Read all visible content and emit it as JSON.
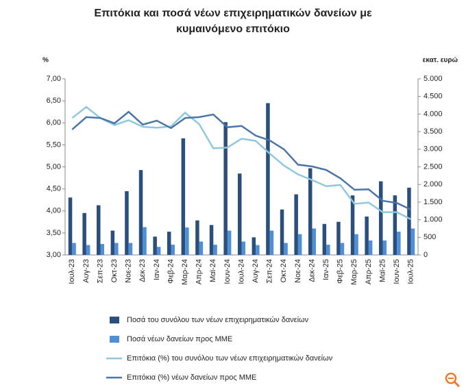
{
  "chart_data": {
    "type": "combo",
    "title": "Επιτόκια και ποσά νέων επιχειρηματικών δανείων με κυμαινόμενο επιτόκιο",
    "y_label": "%",
    "y2_label": "εκατ. ευρώ",
    "categories": [
      "Ιουλ-23",
      "Αυγ-23",
      "Σεπ-23",
      "Οκτ-23",
      "Νοε-23",
      "Δεκ-23",
      "Ιαν-24",
      "Φεβ-24",
      "Μαρ-24",
      "Απρ-24",
      "Μαϊ-24",
      "Ιουν-24",
      "Ιουλ-24",
      "Αυγ-24",
      "Σεπ-24",
      "Οκτ-24",
      "Νοε-24",
      "Δεκ-24",
      "Ιαν-25",
      "Φεβ-25",
      "Μαρ-25",
      "Απρ-25",
      "Μαϊ-25",
      "Ιουν-25",
      "Ιουλ-25"
    ],
    "ylim": [
      3,
      7
    ],
    "yticks": [
      {
        "value": 3,
        "label": "3,00"
      },
      {
        "value": 3.5,
        "label": "3,50"
      },
      {
        "value": 4,
        "label": "4,00"
      },
      {
        "value": 4.5,
        "label": "4,50"
      },
      {
        "value": 5,
        "label": "5,00"
      },
      {
        "value": 5.5,
        "label": "5,50"
      },
      {
        "value": 6,
        "label": "6,00"
      },
      {
        "value": 6.5,
        "label": "6,50"
      },
      {
        "value": 7,
        "label": "7,00"
      }
    ],
    "y2lim": [
      0,
      5000
    ],
    "y2ticks": [
      0,
      500,
      {
        "value": 1000,
        "label": "1.000"
      },
      {
        "value": 1500,
        "label": "1.500"
      },
      {
        "value": 2000,
        "label": "2.000"
      },
      {
        "value": 2500,
        "label": "2.500"
      },
      {
        "value": 3000,
        "label": "3.000"
      },
      {
        "value": 3500,
        "label": "3.500"
      },
      {
        "value": 4000,
        "label": "4.000"
      },
      {
        "value": 4500,
        "label": "4.500"
      },
      {
        "value": 5000,
        "label": "5.000"
      }
    ],
    "series": [
      {
        "name": "Ποσά του συνόλου των νέων επιχειρηματικών δανείων",
        "type": "bar",
        "axis": "y2",
        "color": "#2b4f7c",
        "values": [
          1630,
          1190,
          1410,
          690,
          1810,
          2410,
          520,
          660,
          3310,
          980,
          850,
          3770,
          2310,
          500,
          4310,
          1290,
          1720,
          2460,
          880,
          940,
          1690,
          1090,
          2090,
          1690,
          1910
        ]
      },
      {
        "name": "Ποσά νέων δανείων προς ΜΜΕ",
        "type": "bar",
        "axis": "y2",
        "color": "#4f8fd6",
        "values": [
          340,
          280,
          310,
          340,
          340,
          790,
          230,
          290,
          780,
          380,
          290,
          690,
          380,
          280,
          690,
          340,
          590,
          750,
          290,
          340,
          590,
          410,
          410,
          660,
          750
        ]
      },
      {
        "name": "Επιτόκια (%) του συνόλου των νέων επιχειρηματικών δανείων",
        "type": "line",
        "axis": "y",
        "color": "#8fc8de",
        "values": [
          6.11,
          6.36,
          6.11,
          5.95,
          6.06,
          5.91,
          5.89,
          5.92,
          6.23,
          5.97,
          5.42,
          5.44,
          5.64,
          5.59,
          5.3,
          5.03,
          4.83,
          4.7,
          4.56,
          4.59,
          4.16,
          4.19,
          3.97,
          3.97,
          3.81
        ]
      },
      {
        "name": "Επιτόκια (%) νέων δανείων προς ΜΜΕ",
        "type": "line",
        "axis": "y",
        "color": "#4a74a8",
        "values": [
          5.85,
          6.13,
          6.11,
          5.99,
          6.25,
          5.96,
          6.05,
          5.88,
          6.11,
          6.13,
          6.19,
          5.9,
          5.93,
          5.71,
          5.6,
          5.4,
          5.05,
          5.01,
          4.93,
          4.74,
          4.48,
          4.49,
          4.23,
          4.18,
          4.03
        ]
      }
    ]
  }
}
